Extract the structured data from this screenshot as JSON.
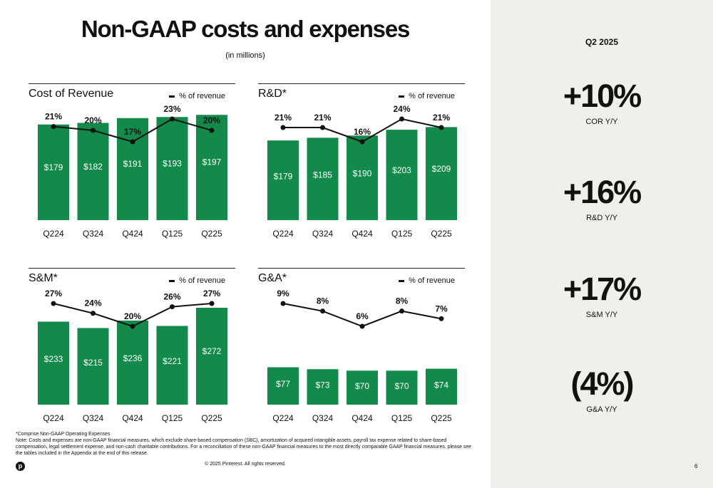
{
  "title": "Non-GAAP costs and expenses",
  "subtitle": "(in millions)",
  "legend_label": "% of revenue",
  "quarter_label": "Q2 2025",
  "metrics": [
    {
      "value": "+10%",
      "label": "COR Y/Y"
    },
    {
      "value": "+16%",
      "label": "R&D Y/Y"
    },
    {
      "value": "+17%",
      "label": "S&M Y/Y"
    },
    {
      "value": "(4%)",
      "label": "G&A Y/Y"
    }
  ],
  "footnote_line1": "*Comprise Non-GAAP Operating Expenses",
  "footnote_line2": "Note: Costs and expenses are non-GAAP financial measures, which exclude share-based compensation (SBC), amortization of acquired intangible assets, payroll tax expense related to share-based compensation, legal settlement expense, and non-cash charitable contributions. For a reconciliation of these non-GAAP financial measures to the most directly comparable GAAP financial measures, please see the tables included in the Appendix at the end of this release.",
  "copyright": "© 2025 Pinterest. All rights reserved.",
  "page_number": "6",
  "logo_letter": "p",
  "colors": {
    "bar": "#128a4a",
    "line": "#111111",
    "side_bg": "#f1efe9"
  },
  "chart_data": [
    {
      "type": "bar",
      "title": "Cost of Revenue",
      "categories": [
        "Q224",
        "Q324",
        "Q424",
        "Q125",
        "Q225"
      ],
      "values": [
        179,
        182,
        191,
        193,
        197
      ],
      "value_labels": [
        "$179",
        "$182",
        "$191",
        "$193",
        "$197"
      ],
      "ylim": [
        0,
        200
      ],
      "line_series": {
        "name": "% of revenue",
        "values": [
          21,
          20,
          17,
          23,
          20
        ],
        "labels": [
          "21%",
          "20%",
          "17%",
          "23%",
          "20%"
        ]
      }
    },
    {
      "type": "bar",
      "title": "R&D*",
      "categories": [
        "Q224",
        "Q324",
        "Q424",
        "Q125",
        "Q225"
      ],
      "values": [
        179,
        185,
        190,
        203,
        209
      ],
      "value_labels": [
        "$179",
        "$185",
        "$190",
        "$203",
        "$209"
      ],
      "ylim": [
        0,
        240
      ],
      "line_series": {
        "name": "% of revenue",
        "values": [
          21,
          21,
          16,
          24,
          21
        ],
        "labels": [
          "21%",
          "21%",
          "16%",
          "24%",
          "21%"
        ]
      }
    },
    {
      "type": "bar",
      "title": "S&M*",
      "categories": [
        "Q224",
        "Q324",
        "Q424",
        "Q125",
        "Q225"
      ],
      "values": [
        233,
        215,
        236,
        221,
        272
      ],
      "value_labels": [
        "$233",
        "$215",
        "$236",
        "$221",
        "$272"
      ],
      "ylim": [
        0,
        300
      ],
      "line_series": {
        "name": "% of revenue",
        "values": [
          27,
          24,
          20,
          26,
          27
        ],
        "labels": [
          "27%",
          "24%",
          "20%",
          "26%",
          "27%"
        ]
      }
    },
    {
      "type": "bar",
      "title": "G&A*",
      "categories": [
        "Q224",
        "Q324",
        "Q424",
        "Q125",
        "Q225"
      ],
      "values": [
        77,
        73,
        70,
        70,
        74
      ],
      "value_labels": [
        "$77",
        "$73",
        "$70",
        "$70",
        "$74"
      ],
      "ylim": [
        0,
        220
      ],
      "line_series": {
        "name": "% of revenue",
        "values": [
          9,
          8,
          6,
          8,
          7
        ],
        "labels": [
          "9%",
          "8%",
          "6%",
          "8%",
          "7%"
        ]
      }
    }
  ]
}
